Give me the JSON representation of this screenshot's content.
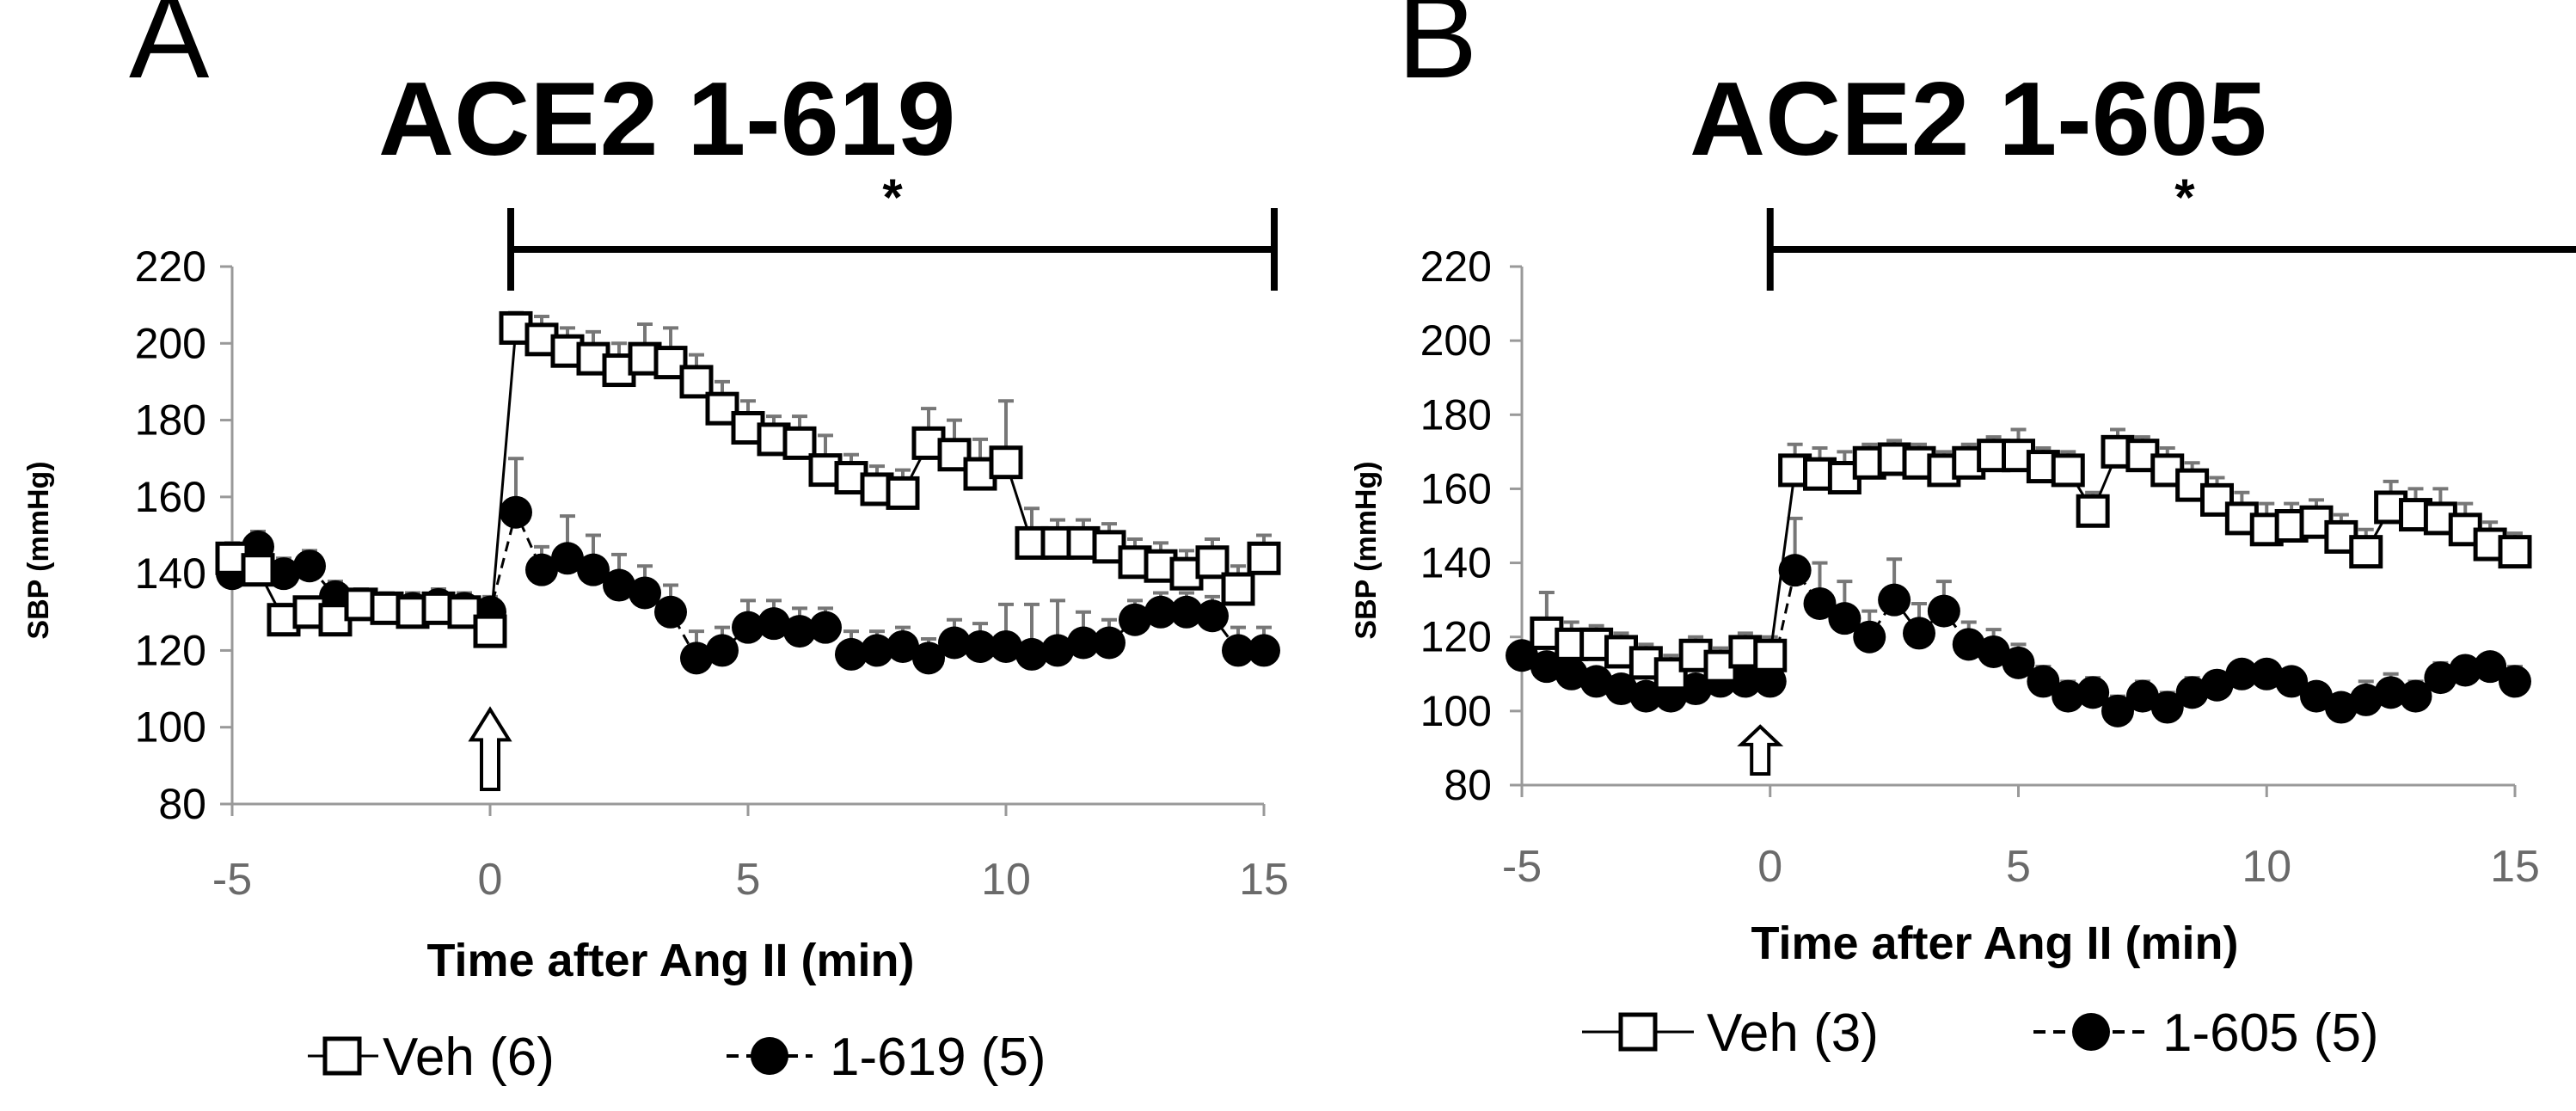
{
  "chart_data": [
    {
      "type": "scatter",
      "panel_letter": "A",
      "title": "ACE2 1-619",
      "significance": "*",
      "xlabel": "Time after Ang II (min)",
      "ylabel": "SBP (mmHg)",
      "xlim": [
        -5,
        15
      ],
      "ylim": [
        80,
        220
      ],
      "x_ticks": [
        -5,
        0,
        5,
        10,
        15
      ],
      "y_ticks": [
        80,
        100,
        120,
        140,
        160,
        180,
        200,
        220
      ],
      "grid": false,
      "arrow_at_x": 0,
      "bracket_x": [
        0.4,
        15.2
      ],
      "series": [
        {
          "name": "Veh (6)",
          "marker": "open-square",
          "line": "solid",
          "x": [
            -5,
            -4.5,
            -4,
            -3.5,
            -3,
            -2.5,
            -2,
            -1.5,
            -1,
            -0.5,
            0,
            0.5,
            1,
            1.5,
            2,
            2.5,
            3,
            3.5,
            4,
            4.5,
            5,
            5.5,
            6,
            6.5,
            7,
            7.5,
            8,
            8.5,
            9,
            9.5,
            10,
            10.5,
            11,
            11.5,
            12,
            12.5,
            13,
            13.5,
            14,
            14.5,
            15
          ],
          "y": [
            144,
            141,
            128,
            130,
            128,
            132,
            131,
            130,
            131,
            130,
            125,
            204,
            201,
            198,
            196,
            193,
            196,
            195,
            190,
            183,
            178,
            175,
            174,
            167,
            165,
            162,
            161,
            174,
            171,
            166,
            169,
            148,
            148,
            148,
            147,
            143,
            142,
            140,
            143,
            136,
            144
          ],
          "err": [
            4,
            5,
            4,
            3,
            3,
            3,
            3,
            3,
            3,
            3,
            3,
            4,
            6,
            6,
            7,
            7,
            9,
            9,
            7,
            7,
            7,
            6,
            7,
            9,
            6,
            6,
            6,
            9,
            9,
            9,
            16,
            9,
            6,
            6,
            6,
            6,
            6,
            6,
            6,
            6,
            6
          ]
        },
        {
          "name": "1-619 (5)",
          "marker": "filled-circle",
          "line": "dashed",
          "x": [
            -5,
            -4.5,
            -4,
            -3.5,
            -3,
            -2.5,
            -2,
            -1.5,
            -1,
            -0.5,
            0,
            0.5,
            1,
            1.5,
            2,
            2.5,
            3,
            3.5,
            4,
            4.5,
            5,
            5.5,
            6,
            6.5,
            7,
            7.5,
            8,
            8.5,
            9,
            9.5,
            10,
            10.5,
            11,
            11.5,
            12,
            12.5,
            13,
            13.5,
            14,
            14.5,
            15
          ],
          "y": [
            140,
            147,
            140,
            142,
            134,
            132,
            131,
            131,
            132,
            131,
            130,
            156,
            141,
            144,
            141,
            137,
            135,
            130,
            118,
            120,
            126,
            127,
            125,
            126,
            119,
            120,
            121,
            118,
            122,
            121,
            121,
            119,
            120,
            122,
            122,
            128,
            130,
            130,
            129,
            120,
            120
          ],
          "err": [
            4,
            4,
            4,
            4,
            4,
            4,
            4,
            4,
            4,
            4,
            4,
            14,
            6,
            11,
            9,
            8,
            7,
            7,
            7,
            6,
            7,
            6,
            6,
            5,
            6,
            5,
            5,
            5,
            6,
            6,
            11,
            13,
            13,
            8,
            6,
            5,
            5,
            5,
            5,
            6,
            6
          ]
        }
      ]
    },
    {
      "type": "scatter",
      "panel_letter": "B",
      "title": "ACE2 1-605",
      "significance": "*",
      "xlabel": "Time after Ang II (min)",
      "ylabel": "SBP (mmHg)",
      "xlim": [
        -5,
        15
      ],
      "ylim": [
        80,
        220
      ],
      "x_ticks": [
        -5,
        0,
        5,
        10,
        15
      ],
      "y_ticks": [
        80,
        100,
        120,
        140,
        160,
        180,
        200,
        220
      ],
      "grid": false,
      "arrow_at_x": -0.2,
      "bracket_x": [
        0,
        16.7
      ],
      "series": [
        {
          "name": "Veh (3)",
          "marker": "open-square",
          "line": "solid",
          "x": [
            -4.5,
            -4,
            -3.5,
            -3,
            -2.5,
            -2,
            -1.5,
            -1,
            -0.5,
            0,
            0.5,
            1,
            1.5,
            2,
            2.5,
            3,
            3.5,
            4,
            4.5,
            5,
            5.5,
            6,
            6.5,
            7,
            7.5,
            8,
            8.5,
            9,
            9.5,
            10,
            10.5,
            11,
            11.5,
            12,
            12.5,
            13,
            13.5,
            14,
            14.5,
            15
          ],
          "y": [
            121,
            118,
            118,
            116,
            113,
            110,
            115,
            112,
            116,
            115,
            165,
            164,
            163,
            167,
            168,
            167,
            165,
            167,
            169,
            169,
            166,
            165,
            154,
            170,
            169,
            165,
            161,
            157,
            152,
            149,
            150,
            151,
            147,
            143,
            155,
            153,
            152,
            149,
            145,
            143
          ],
          "err": [
            11,
            6,
            5,
            5,
            5,
            5,
            5,
            5,
            5,
            5,
            7,
            7,
            7,
            5,
            5,
            5,
            5,
            5,
            5,
            7,
            5,
            5,
            5,
            6,
            5,
            6,
            6,
            6,
            7,
            7,
            6,
            6,
            6,
            6,
            7,
            7,
            8,
            7,
            6,
            5
          ]
        },
        {
          "name": "1-605 (5)",
          "marker": "filled-circle",
          "line": "dashed",
          "x": [
            -5,
            -4.5,
            -4,
            -3.5,
            -3,
            -2.5,
            -2,
            -1.5,
            -1,
            -0.5,
            0,
            0.5,
            1,
            1.5,
            2,
            2.5,
            3,
            3.5,
            4,
            4.5,
            5,
            5.5,
            6,
            6.5,
            7,
            7.5,
            8,
            8.5,
            9,
            9.5,
            10,
            10.5,
            11,
            11.5,
            12,
            12.5,
            13,
            13.5,
            14,
            14.5,
            15
          ],
          "y": [
            115,
            112,
            110,
            108,
            106,
            104,
            104,
            106,
            108,
            108,
            108,
            138,
            129,
            125,
            120,
            130,
            121,
            127,
            118,
            116,
            113,
            108,
            104,
            105,
            100,
            104,
            101,
            105,
            107,
            110,
            110,
            108,
            104,
            101,
            103,
            105,
            104,
            109,
            111,
            112,
            108
          ],
          "err": [
            3,
            3,
            3,
            3,
            3,
            3,
            3,
            3,
            3,
            3,
            3,
            14,
            11,
            10,
            7,
            11,
            8,
            8,
            6,
            6,
            5,
            4,
            4,
            4,
            4,
            4,
            4,
            4,
            3,
            3,
            3,
            3,
            3,
            3,
            5,
            5,
            4,
            4,
            3,
            3,
            4
          ]
        }
      ]
    }
  ]
}
